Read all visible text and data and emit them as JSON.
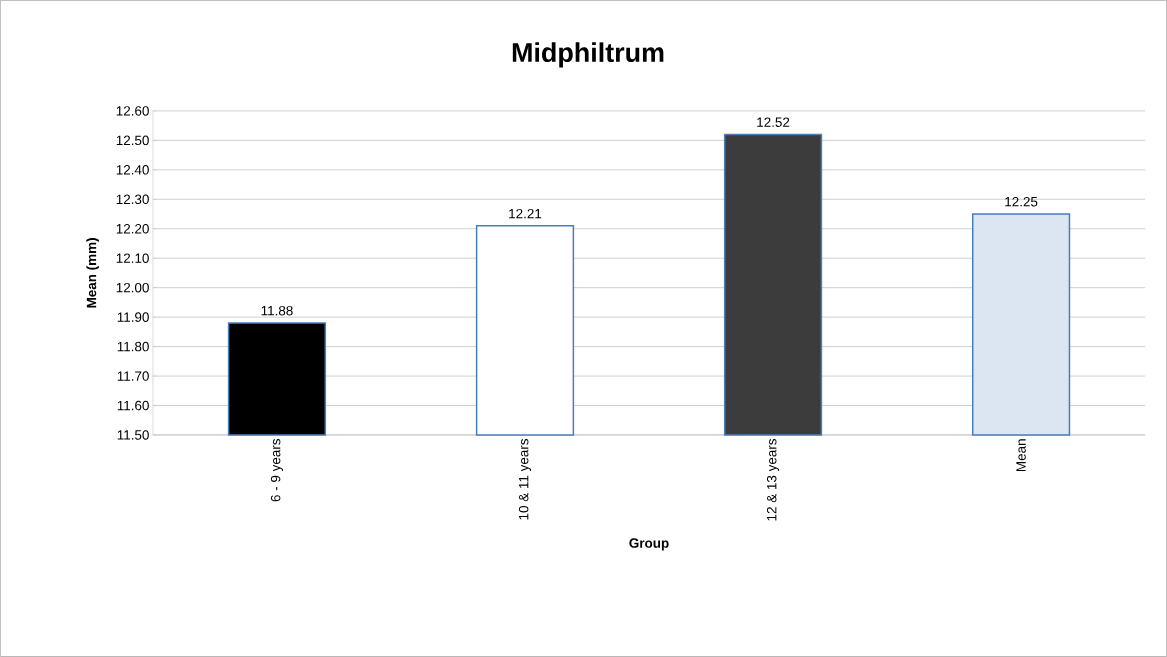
{
  "chart_data": {
    "type": "bar",
    "title": "Midphiltrum",
    "xlabel": "Group",
    "ylabel": "Mean (mm)",
    "categories": [
      "6 - 9 years",
      "10 & 11 years",
      "12 & 13 years",
      "Mean"
    ],
    "values": [
      11.88,
      12.21,
      12.52,
      12.25
    ],
    "colors": [
      "#000000",
      "#ffffff",
      "#3c3c3c",
      "#dce6f2"
    ],
    "ylim": [
      11.5,
      12.6
    ],
    "yticks": [
      {
        "value": 11.5,
        "label": "11.50"
      },
      {
        "value": 11.6,
        "label": "11.60"
      },
      {
        "value": 11.7,
        "label": "11.70"
      },
      {
        "value": 11.8,
        "label": "11.80"
      },
      {
        "value": 11.9,
        "label": "11.90"
      },
      {
        "value": 12.0,
        "label": "12.00"
      },
      {
        "value": 12.1,
        "label": "12.10"
      },
      {
        "value": 12.2,
        "label": "12.20"
      },
      {
        "value": 12.3,
        "label": "12.30"
      },
      {
        "value": 12.4,
        "label": "12.40"
      },
      {
        "value": 12.5,
        "label": "12.50"
      },
      {
        "value": 12.6,
        "label": "12.60"
      }
    ],
    "grid": "y",
    "data_labels": true
  }
}
